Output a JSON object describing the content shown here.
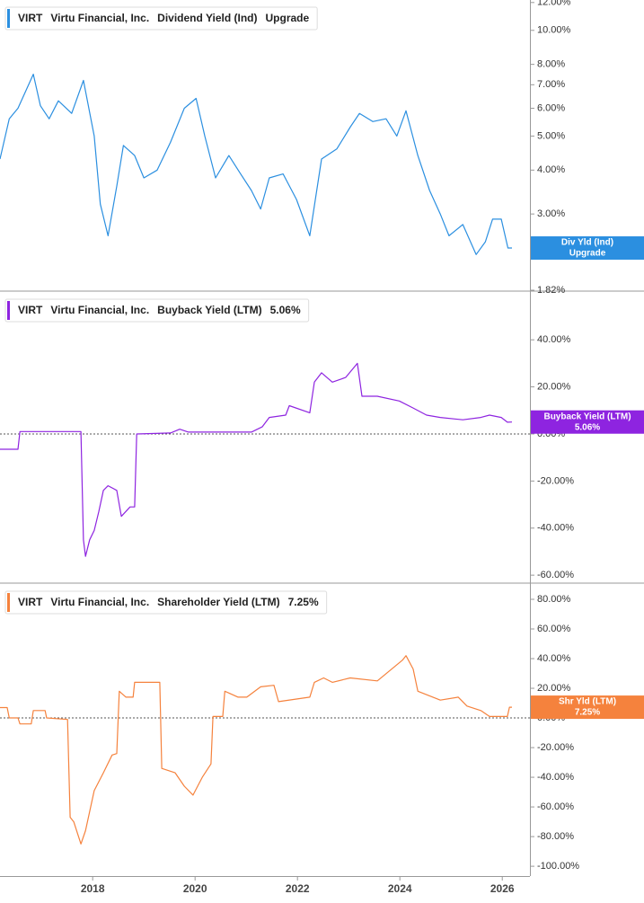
{
  "chart_data": [
    {
      "type": "line",
      "ticker": "VIRT",
      "company": "Virtu Financial, Inc.",
      "yscale": "log",
      "xlim": [
        2016.19,
        2026.54
      ],
      "x": [
        2016.19,
        2016.37,
        2016.54,
        2016.84,
        2016.98,
        2017.15,
        2017.33,
        2017.59,
        2017.82,
        2018.03,
        2018.15,
        2018.3,
        2018.47,
        2018.6,
        2018.82,
        2019.0,
        2019.26,
        2019.52,
        2019.79,
        2020.02,
        2020.19,
        2020.4,
        2020.66,
        2020.89,
        2021.1,
        2021.28,
        2021.45,
        2021.72,
        2021.98,
        2022.24,
        2022.47,
        2022.77,
        2023.03,
        2023.21,
        2023.47,
        2023.73,
        2023.94,
        2024.12,
        2024.35,
        2024.58,
        2024.79,
        2024.96,
        2025.23,
        2025.49,
        2025.67,
        2025.81,
        2025.98,
        2026.11,
        2026.19
      ],
      "series": [
        {
          "name": "Dividend Yield (Ind)",
          "short_name": "Div Yld (Ind)",
          "value_label": "Upgrade",
          "color": "#2b8fe0",
          "values": [
            4.3,
            5.6,
            6.0,
            7.5,
            6.1,
            5.6,
            6.3,
            5.8,
            7.2,
            5.0,
            3.2,
            2.6,
            3.6,
            4.7,
            4.4,
            3.8,
            4.0,
            4.8,
            6.0,
            6.4,
            5.0,
            3.8,
            4.4,
            3.9,
            3.5,
            3.1,
            3.8,
            3.9,
            3.3,
            2.6,
            4.3,
            4.6,
            5.3,
            5.8,
            5.5,
            5.6,
            5.0,
            5.9,
            4.4,
            3.5,
            3.0,
            2.6,
            2.8,
            2.3,
            2.5,
            2.9,
            2.9,
            2.4,
            2.4
          ]
        }
      ],
      "ylim": [
        1.82,
        12.2
      ],
      "yticks": [
        {
          "value": 1.82,
          "label": "1.82%"
        },
        {
          "value": 3,
          "label": "3.00%"
        },
        {
          "value": 4,
          "label": "4.00%"
        },
        {
          "value": 5,
          "label": "5.00%"
        },
        {
          "value": 6,
          "label": "6.00%"
        },
        {
          "value": 7,
          "label": "7.00%"
        },
        {
          "value": 8,
          "label": "8.00%"
        },
        {
          "value": 10,
          "label": "10.00%"
        },
        {
          "value": 12,
          "label": "12.00%"
        }
      ]
    },
    {
      "type": "line",
      "ticker": "VIRT",
      "company": "Virtu Financial, Inc.",
      "zero_line": true,
      "xlim": [
        2016.19,
        2026.54
      ],
      "x": [
        2016.19,
        2016.54,
        2016.58,
        2017.77,
        2017.82,
        2017.86,
        2017.94,
        2018.03,
        2018.12,
        2018.21,
        2018.3,
        2018.47,
        2018.56,
        2018.73,
        2018.82,
        2018.86,
        2019.52,
        2019.7,
        2019.87,
        2021.1,
        2021.31,
        2021.45,
        2021.77,
        2021.84,
        2022.24,
        2022.33,
        2022.47,
        2022.68,
        2022.94,
        2023.17,
        2023.26,
        2023.56,
        2023.99,
        2024.26,
        2024.52,
        2024.79,
        2025.23,
        2025.58,
        2025.75,
        2025.98,
        2026.1,
        2026.19
      ],
      "series": [
        {
          "name": "Buyback Yield (LTM)",
          "short_name": "Buyback Yield (LTM)",
          "value_label": "5.06%",
          "color": "#8e24e0",
          "values": [
            -6.5,
            -6.5,
            1,
            1,
            -45,
            -52,
            -45,
            -41,
            -33,
            -24,
            -22,
            -24,
            -35,
            -31,
            -31,
            0,
            0.4,
            2,
            0.8,
            0.8,
            3,
            7,
            8,
            12,
            9,
            22,
            26,
            22,
            24,
            30,
            16,
            16,
            14,
            11,
            8,
            7,
            6,
            7,
            8,
            7,
            5,
            5.06
          ]
        }
      ],
      "ylim": [
        -63,
        60.3
      ],
      "yticks": [
        {
          "value": -60,
          "label": "-60.00%"
        },
        {
          "value": -40,
          "label": "-40.00%"
        },
        {
          "value": -20,
          "label": "-20.00%"
        },
        {
          "value": 0,
          "label": "0.00%"
        },
        {
          "value": 20,
          "label": "20.00%"
        },
        {
          "value": 40,
          "label": "40.00%"
        }
      ]
    },
    {
      "type": "line",
      "ticker": "VIRT",
      "company": "Virtu Financial, Inc.",
      "zero_line": true,
      "xlim": [
        2016.19,
        2026.54
      ],
      "xticks": [
        2018,
        2020,
        2022,
        2024,
        2026
      ],
      "x": [
        2016.19,
        2016.33,
        2016.37,
        2016.54,
        2016.58,
        2016.8,
        2016.84,
        2017.07,
        2017.1,
        2017.51,
        2017.56,
        2017.63,
        2017.77,
        2017.86,
        2018.03,
        2018.21,
        2018.38,
        2018.47,
        2018.52,
        2018.65,
        2018.79,
        2018.82,
        2019.31,
        2019.35,
        2019.61,
        2019.79,
        2019.96,
        2020.14,
        2020.31,
        2020.35,
        2020.54,
        2020.58,
        2020.84,
        2021.01,
        2021.28,
        2021.54,
        2021.63,
        2022.24,
        2022.33,
        2022.51,
        2022.68,
        2023.03,
        2023.56,
        2024.05,
        2024.12,
        2024.26,
        2024.35,
        2024.79,
        2025.14,
        2025.31,
        2025.58,
        2025.75,
        2026.1,
        2026.14,
        2026.19
      ],
      "series": [
        {
          "name": "Shareholder Yield (LTM)",
          "short_name": "Shr Yld (LTM)",
          "value_label": "7.25%",
          "color": "#f5823d",
          "values": [
            7,
            7,
            0,
            0,
            -4,
            -4,
            5,
            5,
            0,
            -1,
            -67,
            -70,
            -85,
            -76,
            -49,
            -37,
            -25,
            -24,
            18,
            14,
            14,
            24,
            24,
            -34,
            -37,
            -46,
            -52,
            -40,
            -31,
            1,
            1,
            18,
            14,
            14,
            21,
            22,
            11,
            14,
            24,
            27,
            24,
            27,
            25,
            39,
            42,
            33,
            18,
            12,
            14,
            8,
            5,
            1,
            1,
            7.25,
            7.25
          ]
        }
      ],
      "ylim": [
        -106.6,
        90.3
      ],
      "yticks": [
        {
          "value": -100,
          "label": "-100.00%"
        },
        {
          "value": -80,
          "label": "-80.00%"
        },
        {
          "value": -60,
          "label": "-60.00%"
        },
        {
          "value": -40,
          "label": "-40.00%"
        },
        {
          "value": -20,
          "label": "-20.00%"
        },
        {
          "value": 0,
          "label": "0.00%"
        },
        {
          "value": 20,
          "label": "20.00%"
        },
        {
          "value": 40,
          "label": "40.00%"
        },
        {
          "value": 60,
          "label": "60.00%"
        },
        {
          "value": 80,
          "label": "80.00%"
        }
      ]
    }
  ]
}
